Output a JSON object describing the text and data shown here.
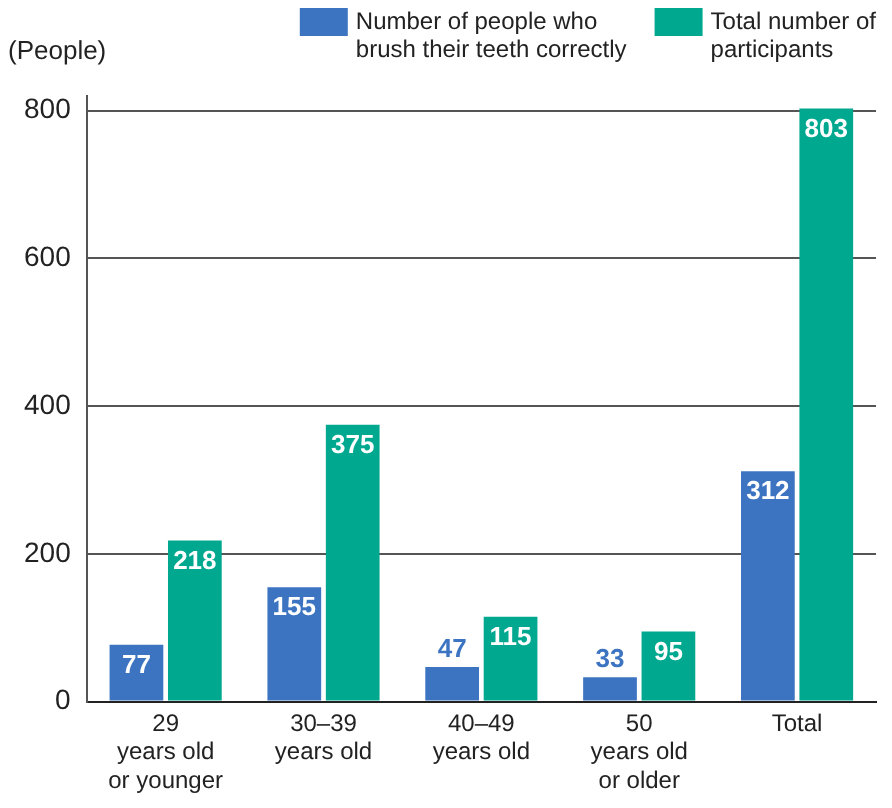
{
  "chart_data": {
    "type": "bar",
    "ylabel": "(People)",
    "categories": [
      "29\nyears old\nor younger",
      "30–39\nyears old",
      "40–49\nyears old",
      "50\nyears old\nor older",
      "Total"
    ],
    "series": [
      {
        "name": "Number of people who\nbrush their teeth correctly",
        "color": "#3d74c2",
        "values": [
          77,
          155,
          47,
          33,
          312
        ]
      },
      {
        "name": "Total number of\nparticipants",
        "color": "#00a88f",
        "values": [
          218,
          375,
          115,
          95,
          803
        ]
      }
    ],
    "ylim": [
      0,
      820
    ],
    "yticks": [
      0,
      200,
      400,
      600,
      800
    ],
    "grid": "y",
    "legend": "top right",
    "data_labels": true
  }
}
